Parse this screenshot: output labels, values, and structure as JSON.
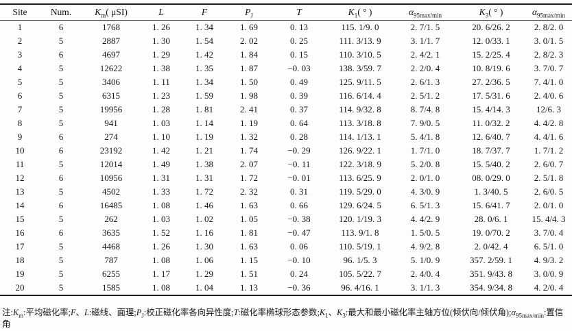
{
  "table": {
    "columns": [
      {
        "id": "site",
        "segments": [
          {
            "t": "Site",
            "s": "n"
          }
        ]
      },
      {
        "id": "num",
        "segments": [
          {
            "t": "Num.",
            "s": "n"
          }
        ]
      },
      {
        "id": "km",
        "segments": [
          {
            "t": "K",
            "s": "i"
          },
          {
            "t": "m",
            "s": "sub"
          },
          {
            "t": "( μSI)",
            "s": "n"
          }
        ]
      },
      {
        "id": "l",
        "segments": [
          {
            "t": "L",
            "s": "i"
          }
        ]
      },
      {
        "id": "f",
        "segments": [
          {
            "t": "F",
            "s": "i"
          }
        ]
      },
      {
        "id": "pj",
        "segments": [
          {
            "t": "P",
            "s": "i"
          },
          {
            "t": "J",
            "s": "sub"
          }
        ]
      },
      {
        "id": "t",
        "segments": [
          {
            "t": "T",
            "s": "i"
          }
        ]
      },
      {
        "id": "k1",
        "segments": [
          {
            "t": "K",
            "s": "i"
          },
          {
            "t": "1",
            "s": "sub"
          },
          {
            "t": "( ° )",
            "s": "n"
          }
        ]
      },
      {
        "id": "a95max-min-1",
        "segments": [
          {
            "t": "α",
            "s": "i"
          },
          {
            "t": "95max/min",
            "s": "sub"
          }
        ]
      },
      {
        "id": "k3",
        "segments": [
          {
            "t": "K",
            "s": "i"
          },
          {
            "t": "3",
            "s": "sub"
          },
          {
            "t": "( ° )",
            "s": "n"
          }
        ]
      },
      {
        "id": "a95max-min-2",
        "segments": [
          {
            "t": "α",
            "s": "i"
          },
          {
            "t": "95max/min",
            "s": "sub"
          }
        ]
      }
    ],
    "rows": [
      [
        "1",
        "6",
        "1768",
        "1. 26",
        "1. 34",
        "1. 69",
        "0. 13",
        "115. 1/9. 0",
        "2. 7/1. 5",
        "20. 6/26. 2",
        "2. 8/2. 0"
      ],
      [
        "2",
        "5",
        "2887",
        "1. 30",
        "1. 54",
        "2. 02",
        "0. 25",
        "111. 3/13. 9",
        "3. 1/1. 7",
        "12. 0/33. 1",
        "3. 0/1. 5"
      ],
      [
        "3",
        "6",
        "4697",
        "1. 29",
        "1. 42",
        "1. 84",
        "0. 15",
        "110. 3/10. 5",
        "2. 4/2. 1",
        "15. 2/25. 4",
        "2. 8/2. 3"
      ],
      [
        "4",
        "5",
        "12622",
        "1. 38",
        "1. 35",
        "1. 87",
        "−0. 03",
        "138. 3/59. 7",
        "2. 2/0. 4",
        "10. 8/19. 6",
        "3. 7/0. 7"
      ],
      [
        "5",
        "5",
        "3406",
        "1. 11",
        "1. 34",
        "1. 50",
        "0. 49",
        "125. 9/11. 5",
        "2. 6/1. 3",
        "27. 2/36. 5",
        "7. 4/1. 0"
      ],
      [
        "6",
        "5",
        "6315",
        "1. 23",
        "1. 59",
        "1. 98",
        "0. 39",
        "116. 6/14. 4",
        "2. 5/1. 2",
        "17. 5/31. 6",
        "2. 4/0. 6"
      ],
      [
        "7",
        "5",
        "19956",
        "1. 28",
        "1. 81",
        "2. 41",
        "0. 37",
        "114. 9/32. 8",
        "8. 7/4. 8",
        "15. 4/14. 3",
        "12/6. 3"
      ],
      [
        "8",
        "5",
        "941",
        "1. 03",
        "1. 14",
        "1. 19",
        "0. 64",
        "113. 3/18. 8",
        "7. 9/0. 5",
        "11. 0/32. 2",
        "4. 4/2. 8"
      ],
      [
        "9",
        "6",
        "274",
        "1. 10",
        "1. 19",
        "1. 32",
        "0. 28",
        "114. 1/13. 1",
        "5. 4/1. 8",
        "12. 6/40. 7",
        "4. 4/1. 6"
      ],
      [
        "10",
        "6",
        "23192",
        "1. 42",
        "1. 21",
        "1. 74",
        "−0. 29",
        "126. 9/22. 1",
        "1. 7/1. 0",
        "18. 7/37. 7",
        "1. 7/1. 2"
      ],
      [
        "11",
        "5",
        "12014",
        "1. 49",
        "1. 38",
        "2. 07",
        "−0. 11",
        "122. 3/18. 9",
        "5. 2/0. 8",
        "15. 5/40. 2",
        "2. 6/0. 7"
      ],
      [
        "12",
        "6",
        "10956",
        "1. 31",
        "1. 31",
        "1. 72",
        "−0. 01",
        "113. 6/25. 9",
        "2. 0/1. 0",
        "08. 0/29. 0",
        "2. 5/1. 8"
      ],
      [
        "13",
        "5",
        "4502",
        "1. 33",
        "1. 72",
        "2. 32",
        "0. 31",
        "119. 5/29. 0",
        "4. 3/0. 9",
        "1. 3/40. 5",
        "2. 6/0. 5"
      ],
      [
        "14",
        "6",
        "16485",
        "1. 08",
        "1. 46",
        "1. 63",
        "0. 66",
        "129. 6/24. 5",
        "6. 5/1. 3",
        "15. 6/41. 7",
        "2. 0/1. 0"
      ],
      [
        "15",
        "5",
        "262",
        "1. 03",
        "1. 02",
        "1. 05",
        "−0. 38",
        "120. 1/19. 3",
        "4. 4/2. 9",
        "28. 0/6. 1",
        "15. 4/4. 3"
      ],
      [
        "16",
        "6",
        "3635",
        "1. 52",
        "1. 16",
        "1. 81",
        "−0. 47",
        "113. 9/1. 8",
        "1. 5/0. 5",
        "19. 0/70. 2",
        "3. 7/0. 4"
      ],
      [
        "17",
        "5",
        "4468",
        "1. 26",
        "1. 30",
        "1. 63",
        "0. 06",
        "110. 5/19. 1",
        "4. 9/2. 8",
        "2. 0/42. 4",
        "6. 5/1. 0"
      ],
      [
        "18",
        "5",
        "787",
        "1. 08",
        "1. 06",
        "1. 15",
        "−0. 10",
        "96. 1/5. 3",
        "5. 1/0. 9",
        "357. 2/59. 1",
        "4. 9/3. 2"
      ],
      [
        "19",
        "5",
        "6255",
        "1. 17",
        "1. 29",
        "1. 51",
        "0. 24",
        "105. 5/22. 7",
        "2. 4/0. 4",
        "351. 9/43. 8",
        "3. 0/0. 9"
      ],
      [
        "20",
        "5",
        "1585",
        "1. 08",
        "1. 04",
        "1. 13",
        "−0. 36",
        "96. 4/16. 1",
        "3. 1/1. 3",
        "354. 9/34. 8",
        "4. 2/0. 4"
      ]
    ]
  },
  "notes": {
    "segments": [
      {
        "t": "注:",
        "s": "n"
      },
      {
        "t": "K",
        "s": "i"
      },
      {
        "t": "m",
        "s": "sub"
      },
      {
        "t": ":平均磁化率;",
        "s": "n"
      },
      {
        "t": "F",
        "s": "i"
      },
      {
        "t": "、",
        "s": "n"
      },
      {
        "t": "L",
        "s": "i"
      },
      {
        "t": ":磁线、面理;",
        "s": "n"
      },
      {
        "t": "P",
        "s": "i"
      },
      {
        "t": "J",
        "s": "sub"
      },
      {
        "t": ":校正磁化率各向异性度;",
        "s": "n"
      },
      {
        "t": "T",
        "s": "i"
      },
      {
        "t": ":磁化率椭球形态参数;",
        "s": "n"
      },
      {
        "t": "K",
        "s": "i"
      },
      {
        "t": "1",
        "s": "sub"
      },
      {
        "t": "、",
        "s": "n"
      },
      {
        "t": "K",
        "s": "i"
      },
      {
        "t": "3",
        "s": "sub"
      },
      {
        "t": ":最大和最小磁化率主轴方位(倾伏向/倾伏角);",
        "s": "n"
      },
      {
        "t": "α",
        "s": "i"
      },
      {
        "t": "95max/min",
        "s": "sub"
      },
      {
        "t": ":置信角",
        "s": "n"
      }
    ]
  }
}
